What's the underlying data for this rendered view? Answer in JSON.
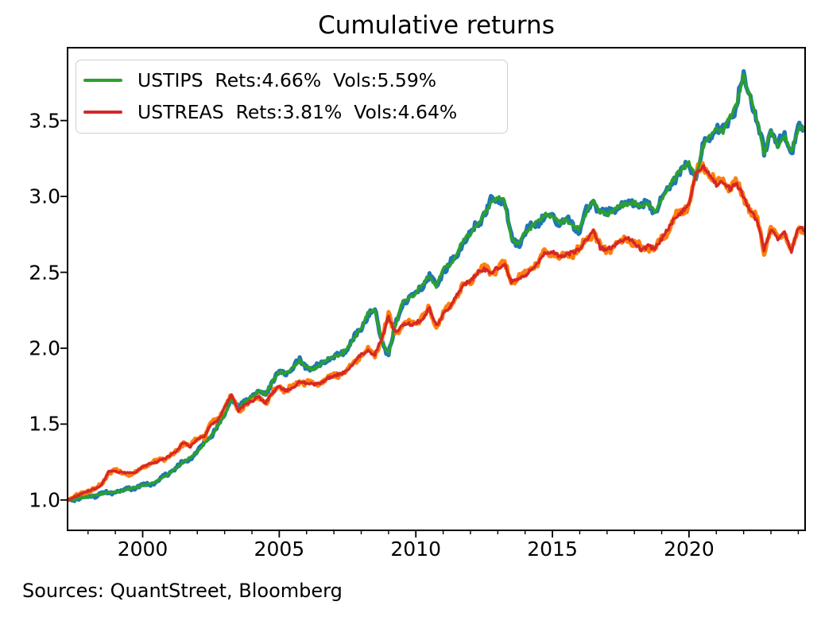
{
  "title": "Cumulative returns",
  "source_note": "Sources: QuantStreet, Bloomberg",
  "colors": {
    "ustips_line": "#2ca02c",
    "ustips_underlay": "#1f77b4",
    "ustreas_line": "#d62728",
    "ustreas_underlay": "#ff7f0e",
    "axis": "#000000",
    "legend_border": "#cfcfcf",
    "background": "#ffffff"
  },
  "legend": {
    "position": "upper left",
    "items": [
      {
        "label": "USTIPS  Rets:4.66%  Vols:5.59%",
        "color": "#2ca02c"
      },
      {
        "label": "USTREAS  Rets:3.81%  Vols:4.64%",
        "color": "#d62728"
      }
    ]
  },
  "chart_data": {
    "type": "line",
    "title": "Cumulative returns",
    "xlabel": "",
    "ylabel": "",
    "grid": false,
    "legend_position": "upper left",
    "xlim": [
      1997.25,
      2024.25
    ],
    "ylim": [
      0.8,
      3.98
    ],
    "x_ticks": {
      "major": [
        2000,
        2005,
        2010,
        2015,
        2020
      ],
      "minor_interval": 1
    },
    "y_ticks": [
      1.0,
      1.5,
      2.0,
      2.5,
      3.0,
      3.5
    ],
    "x_start": 1997.25,
    "x_step": 0.25,
    "series": [
      {
        "name": "USTIPS",
        "legend_label": "USTIPS  Rets:4.66%  Vols:5.59%",
        "rets_pct": 4.66,
        "vols_pct": 5.59,
        "color": "#2ca02c",
        "underlay_color": "#1f77b4",
        "values": [
          1.0,
          1.005,
          1.015,
          1.022,
          1.03,
          1.04,
          1.048,
          1.052,
          1.06,
          1.075,
          1.082,
          1.095,
          1.105,
          1.12,
          1.15,
          1.18,
          1.215,
          1.25,
          1.28,
          1.315,
          1.37,
          1.42,
          1.49,
          1.56,
          1.67,
          1.6,
          1.65,
          1.68,
          1.72,
          1.7,
          1.78,
          1.84,
          1.84,
          1.87,
          1.92,
          1.88,
          1.86,
          1.89,
          1.93,
          1.94,
          1.96,
          2.0,
          2.07,
          2.13,
          2.23,
          2.25,
          2.05,
          1.96,
          2.15,
          2.3,
          2.33,
          2.36,
          2.42,
          2.47,
          2.41,
          2.52,
          2.55,
          2.62,
          2.72,
          2.75,
          2.82,
          2.88,
          2.96,
          2.99,
          2.97,
          2.72,
          2.69,
          2.76,
          2.8,
          2.84,
          2.88,
          2.87,
          2.83,
          2.85,
          2.8,
          2.79,
          2.9,
          2.97,
          2.9,
          2.88,
          2.91,
          2.94,
          2.95,
          2.96,
          2.93,
          2.95,
          2.9,
          2.98,
          3.06,
          3.13,
          3.18,
          3.22,
          3.12,
          3.32,
          3.39,
          3.45,
          3.43,
          3.52,
          3.61,
          3.8,
          3.65,
          3.5,
          3.28,
          3.44,
          3.33,
          3.4,
          3.29,
          3.45,
          3.44
        ]
      },
      {
        "name": "USTREAS",
        "legend_label": "USTREAS  Rets:3.81%  Vols:4.64%",
        "rets_pct": 3.81,
        "vols_pct": 4.64,
        "color": "#d62728",
        "underlay_color": "#ff7f0e",
        "values": [
          1.0,
          1.02,
          1.04,
          1.06,
          1.075,
          1.1,
          1.185,
          1.19,
          1.18,
          1.175,
          1.18,
          1.22,
          1.235,
          1.25,
          1.27,
          1.29,
          1.32,
          1.38,
          1.35,
          1.405,
          1.42,
          1.5,
          1.52,
          1.61,
          1.69,
          1.59,
          1.63,
          1.65,
          1.68,
          1.64,
          1.7,
          1.75,
          1.72,
          1.74,
          1.78,
          1.77,
          1.76,
          1.77,
          1.8,
          1.82,
          1.83,
          1.85,
          1.91,
          1.96,
          1.98,
          1.96,
          2.06,
          2.21,
          2.1,
          2.15,
          2.16,
          2.16,
          2.2,
          2.26,
          2.15,
          2.22,
          2.28,
          2.35,
          2.42,
          2.44,
          2.5,
          2.52,
          2.5,
          2.53,
          2.55,
          2.44,
          2.46,
          2.48,
          2.53,
          2.57,
          2.63,
          2.64,
          2.6,
          2.62,
          2.63,
          2.65,
          2.72,
          2.77,
          2.66,
          2.65,
          2.68,
          2.7,
          2.72,
          2.7,
          2.65,
          2.67,
          2.66,
          2.72,
          2.79,
          2.87,
          2.9,
          2.95,
          3.15,
          3.2,
          3.15,
          3.08,
          3.1,
          3.05,
          3.08,
          3.0,
          2.9,
          2.84,
          2.65,
          2.78,
          2.72,
          2.76,
          2.63,
          2.8,
          2.78
        ]
      }
    ]
  }
}
